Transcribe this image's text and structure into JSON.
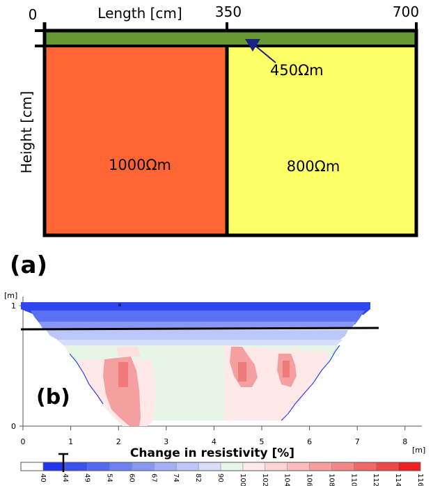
{
  "panel_a": {
    "label": "(a)",
    "x_axis_title": "Length [cm]",
    "y_axis_title": "Height [cm]",
    "x_ticks": [
      "0",
      "350",
      "700"
    ],
    "regions": [
      {
        "label": "1000Ωm",
        "color": "#ff6633"
      },
      {
        "label": "800Ωm",
        "color": "#ffff66"
      }
    ],
    "top_layer": {
      "label": "450Ωm",
      "color": "#669933"
    }
  },
  "panel_b": {
    "label": "(b)",
    "y_unit": "[m]",
    "x_unit": "[m]",
    "y_ticks": [
      "1",
      "0"
    ],
    "x_ticks": [
      "0",
      "1",
      "2",
      "3",
      "4",
      "5",
      "6",
      "7",
      "8"
    ],
    "colorbar_title": "Change in resistivity [%]",
    "colorbar_ticks": [
      "40",
      "44",
      "49",
      "54",
      "60",
      "67",
      "74",
      "82",
      "90",
      "100",
      "102",
      "104",
      "106",
      "108",
      "110",
      "112",
      "114",
      "116"
    ],
    "colorbar_colors": [
      "#ffffff",
      "#2236ee",
      "#3a52f0",
      "#5468f2",
      "#6e80f2",
      "#8898f4",
      "#a2b0f6",
      "#bcc6f8",
      "#d6def8",
      "#e6f6e6",
      "#ffe8e8",
      "#ffd4d4",
      "#ffbcbc",
      "#f8a0a0",
      "#f48888",
      "#f06868",
      "#ee4848",
      "#ee2020"
    ]
  }
}
